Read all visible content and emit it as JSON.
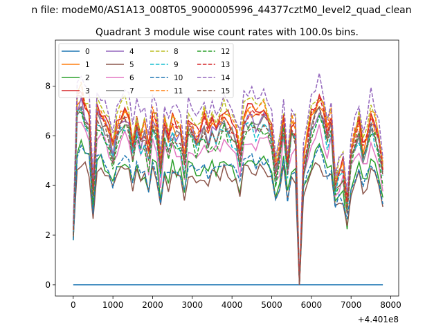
{
  "suptitle": "n file: modeM0/AS1A13_008T05_9000005996_44377cztM0_level2_quad_clean",
  "chart_data": {
    "type": "line",
    "title": "Quadrant 3 module wise count rates with 100.0s bins.",
    "xlabel": "",
    "ylabel": "",
    "x_offset_label": "+4.401e8",
    "xlim": [
      -450,
      8200
    ],
    "ylim": [
      -0.45,
      9.85
    ],
    "xticks": [
      0,
      1000,
      2000,
      3000,
      4000,
      5000,
      6000,
      7000,
      8000
    ],
    "yticks": [
      0,
      2,
      4,
      6,
      8
    ],
    "grid": false,
    "legend_position": "upper-left",
    "x": [
      0,
      100,
      200,
      300,
      400,
      500,
      600,
      700,
      800,
      900,
      1000,
      1100,
      1200,
      1300,
      1400,
      1500,
      1600,
      1700,
      1800,
      1900,
      2000,
      2100,
      2200,
      2300,
      2400,
      2500,
      2600,
      2700,
      2800,
      2900,
      3000,
      3100,
      3200,
      3300,
      3400,
      3500,
      3600,
      3700,
      3800,
      3900,
      4000,
      4100,
      4200,
      4300,
      4400,
      4500,
      4600,
      4700,
      4800,
      4900,
      5000,
      5100,
      5200,
      5300,
      5400,
      5500,
      5600,
      5700,
      5800,
      5900,
      6000,
      6100,
      6200,
      6300,
      6400,
      6500,
      6600,
      6700,
      6800,
      6900,
      7000,
      7100,
      7200,
      7300,
      7400,
      7500,
      7600,
      7700,
      7800
    ],
    "template": [
      0.0,
      1.0,
      1.05,
      0.95,
      0.9,
      0.3,
      0.95,
      0.9,
      0.85,
      0.78,
      0.62,
      0.8,
      0.88,
      0.92,
      0.86,
      0.66,
      0.85,
      0.72,
      0.78,
      0.6,
      0.88,
      0.82,
      0.5,
      0.82,
      0.7,
      0.82,
      0.78,
      0.76,
      0.55,
      0.84,
      0.8,
      0.72,
      0.78,
      0.84,
      0.74,
      0.82,
      0.78,
      0.84,
      0.9,
      0.86,
      0.8,
      0.74,
      0.6,
      0.88,
      0.9,
      0.92,
      0.86,
      0.9,
      0.92,
      0.88,
      0.76,
      0.46,
      0.62,
      0.88,
      0.52,
      0.82,
      0.78,
      0.0,
      0.52,
      0.7,
      0.86,
      0.94,
      1.0,
      0.9,
      0.76,
      0.86,
      0.38,
      0.45,
      0.5,
      0.2,
      0.6,
      0.72,
      0.82,
      0.62,
      0.7,
      0.9,
      0.82,
      0.7,
      0.48
    ],
    "series": [
      {
        "name": "0",
        "color": "#1f77b4",
        "dash": "solid",
        "base": 0.0,
        "amp": 0.0
      },
      {
        "name": "1",
        "color": "#ff7f0e",
        "dash": "solid",
        "base": 2.2,
        "amp": 5.1
      },
      {
        "name": "2",
        "color": "#2ca02c",
        "dash": "solid",
        "base": 1.8,
        "amp": 3.6
      },
      {
        "name": "3",
        "color": "#d62728",
        "dash": "solid",
        "base": 2.3,
        "amp": 5.3
      },
      {
        "name": "4",
        "color": "#9467bd",
        "dash": "solid",
        "base": 2.1,
        "amp": 5.0
      },
      {
        "name": "5",
        "color": "#8c564b",
        "dash": "solid",
        "base": 1.9,
        "amp": 3.0
      },
      {
        "name": "6",
        "color": "#e377c2",
        "dash": "solid",
        "base": 2.0,
        "amp": 4.3
      },
      {
        "name": "7",
        "color": "#7f7f7f",
        "dash": "solid",
        "base": 2.2,
        "amp": 4.8
      },
      {
        "name": "8",
        "color": "#bcbd22",
        "dash": "dashed",
        "base": 2.3,
        "amp": 5.5
      },
      {
        "name": "9",
        "color": "#17becf",
        "dash": "dashed",
        "base": 2.1,
        "amp": 4.6
      },
      {
        "name": "10",
        "color": "#1f77b4",
        "dash": "dashed",
        "base": 1.8,
        "amp": 3.5
      },
      {
        "name": "11",
        "color": "#ff7f0e",
        "dash": "dashed",
        "base": 2.2,
        "amp": 5.4
      },
      {
        "name": "12",
        "color": "#2ca02c",
        "dash": "dashed",
        "base": 2.0,
        "amp": 4.7
      },
      {
        "name": "13",
        "color": "#d62728",
        "dash": "dashed",
        "base": 2.2,
        "amp": 5.2
      },
      {
        "name": "14",
        "color": "#9467bd",
        "dash": "dashed",
        "base": 2.4,
        "amp": 5.9
      },
      {
        "name": "15",
        "color": "#8c564b",
        "dash": "dashed",
        "base": 2.0,
        "amp": 4.9
      }
    ]
  }
}
